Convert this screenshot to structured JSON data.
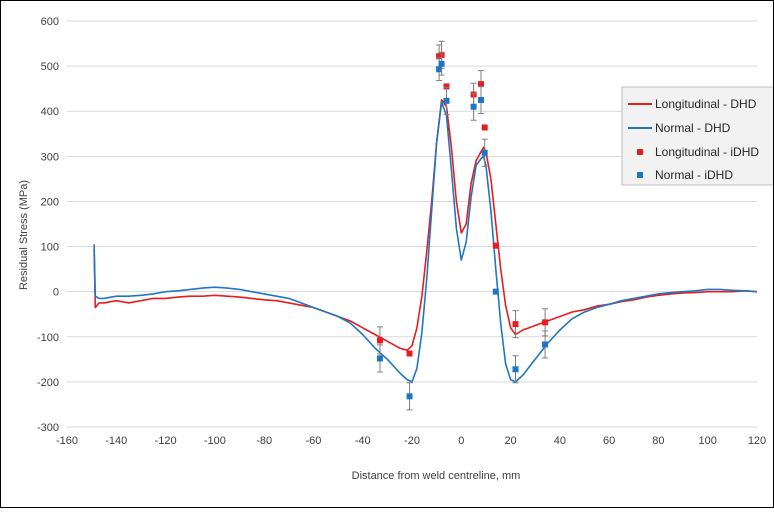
{
  "chart_data": {
    "type": "line",
    "title": "",
    "xlabel": "Distance from weld centreline, mm",
    "ylabel": "Residual Stress (MPa)",
    "xlim": [
      -160,
      120
    ],
    "ylim": [
      -300,
      600
    ],
    "x_ticks": [
      -160,
      -140,
      -120,
      -100,
      -80,
      -60,
      -40,
      -20,
      0,
      20,
      40,
      60,
      80,
      100,
      120
    ],
    "y_ticks": [
      -300,
      -200,
      -100,
      0,
      100,
      200,
      300,
      400,
      500,
      600
    ],
    "grid": "horizontal",
    "legend_position": "right",
    "colors": {
      "longitudinal": "#e81c1c",
      "normal": "#1f77c4",
      "error_bar": "#7f7f7f",
      "grid": "#d9d9d9"
    },
    "series": [
      {
        "name": "Longitudinal - DHD",
        "style": "line",
        "color": "#e81c1c",
        "x": [
          -149,
          -148.5,
          -147,
          -145,
          -140,
          -135,
          -130,
          -125,
          -120,
          -115,
          -110,
          -105,
          -100,
          -95,
          -90,
          -85,
          -80,
          -75,
          -70,
          -65,
          -60,
          -55,
          -50,
          -45,
          -40,
          -35,
          -30,
          -25,
          -22,
          -20,
          -18,
          -16,
          -14,
          -12,
          -10,
          -8,
          -6,
          -4,
          -2,
          0,
          2,
          4,
          6,
          8,
          9,
          10,
          12,
          14,
          16,
          18,
          20,
          22,
          25,
          30,
          35,
          40,
          45,
          50,
          55,
          60,
          65,
          70,
          75,
          80,
          85,
          90,
          95,
          100,
          105,
          110,
          115,
          120
        ],
        "y": [
          95,
          -35,
          -25,
          -25,
          -20,
          -25,
          -20,
          -15,
          -15,
          -12,
          -10,
          -10,
          -8,
          -10,
          -12,
          -15,
          -18,
          -20,
          -25,
          -30,
          -35,
          -45,
          -55,
          -65,
          -80,
          -95,
          -110,
          -125,
          -130,
          -120,
          -80,
          -10,
          90,
          200,
          330,
          425,
          410,
          320,
          200,
          130,
          150,
          240,
          290,
          310,
          320,
          310,
          250,
          150,
          50,
          -30,
          -80,
          -95,
          -85,
          -75,
          -65,
          -55,
          -45,
          -40,
          -32,
          -28,
          -22,
          -18,
          -12,
          -8,
          -5,
          -3,
          -2,
          0,
          0,
          0,
          2,
          0
        ]
      },
      {
        "name": "Normal - DHD",
        "style": "line",
        "color": "#1f77c4",
        "x": [
          -149,
          -148.5,
          -147,
          -145,
          -140,
          -135,
          -130,
          -125,
          -120,
          -115,
          -110,
          -105,
          -100,
          -95,
          -90,
          -85,
          -80,
          -75,
          -70,
          -65,
          -60,
          -55,
          -50,
          -45,
          -40,
          -35,
          -30,
          -25,
          -22,
          -20,
          -18,
          -16,
          -14,
          -12,
          -10,
          -8,
          -6,
          -4,
          -2,
          0,
          2,
          4,
          6,
          8,
          9,
          10,
          12,
          14,
          16,
          18,
          20,
          22,
          25,
          30,
          35,
          40,
          45,
          50,
          55,
          60,
          65,
          70,
          75,
          80,
          85,
          90,
          95,
          100,
          105,
          110,
          115,
          120
        ],
        "y": [
          105,
          -10,
          -15,
          -15,
          -10,
          -10,
          -8,
          -5,
          0,
          2,
          5,
          8,
          10,
          8,
          5,
          0,
          -5,
          -10,
          -15,
          -25,
          -35,
          -45,
          -55,
          -70,
          -95,
          -125,
          -150,
          -180,
          -195,
          -200,
          -170,
          -90,
          30,
          180,
          330,
          420,
          390,
          270,
          140,
          70,
          110,
          210,
          280,
          295,
          300,
          280,
          180,
          50,
          -70,
          -160,
          -195,
          -200,
          -185,
          -150,
          -115,
          -85,
          -60,
          -45,
          -35,
          -28,
          -20,
          -15,
          -10,
          -5,
          -2,
          0,
          2,
          5,
          5,
          3,
          2,
          0
        ]
      },
      {
        "name": "Longitudinal - iDHD",
        "style": "markers",
        "color": "#e81c1c",
        "x": [
          -33,
          -21,
          -9,
          -8,
          -6,
          5,
          8,
          9.5,
          14,
          22,
          34
        ],
        "y": [
          -108,
          -137,
          522,
          525,
          455,
          437,
          460,
          364,
          102,
          -72,
          -68
        ],
        "error": [
          30,
          0,
          25,
          30,
          0,
          25,
          30,
          0,
          0,
          30,
          30
        ]
      },
      {
        "name": "Normal - iDHD",
        "style": "markers",
        "color": "#1f77c4",
        "x": [
          -33,
          -21,
          -9,
          -8,
          -6,
          5,
          8,
          9.5,
          14,
          22,
          34
        ],
        "y": [
          -148,
          -232,
          493,
          505,
          423,
          410,
          425,
          308,
          0,
          -172,
          -117
        ],
        "error": [
          30,
          30,
          25,
          25,
          30,
          30,
          30,
          30,
          0,
          30,
          30
        ]
      }
    ]
  }
}
